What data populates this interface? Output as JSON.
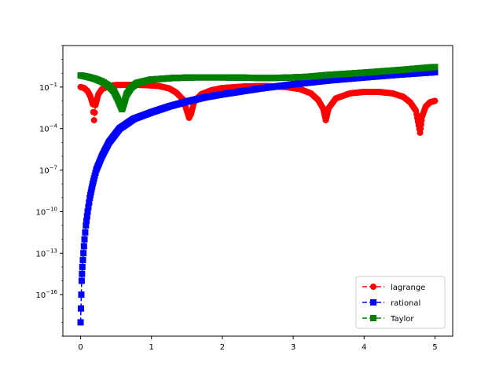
{
  "chart_data": {
    "type": "line",
    "title": "",
    "xlabel": "",
    "ylabel": "",
    "x_scale": "linear",
    "y_scale": "log",
    "xlim": [
      -0.25,
      5.25
    ],
    "ylim": [
      1e-19,
      100.0
    ],
    "x_ticks": [
      {
        "value": 0,
        "label": "0"
      },
      {
        "value": 1,
        "label": "1"
      },
      {
        "value": 2,
        "label": "2"
      },
      {
        "value": 3,
        "label": "3"
      },
      {
        "value": 4,
        "label": "4"
      },
      {
        "value": 5,
        "label": "5"
      }
    ],
    "y_ticks": [
      {
        "value": 1e-16,
        "base": "10",
        "exp": "−16"
      },
      {
        "value": 1e-13,
        "base": "10",
        "exp": "−13"
      },
      {
        "value": 1e-10,
        "base": "10",
        "exp": "−10"
      },
      {
        "value": 1e-07,
        "base": "10",
        "exp": "−7"
      },
      {
        "value": 0.0001,
        "base": "10",
        "exp": "−4"
      },
      {
        "value": 0.1,
        "base": "10",
        "exp": "−1"
      }
    ],
    "grid": false,
    "legend_position": "lower-right",
    "series": [
      {
        "name": "lagrange",
        "color": "#ff0000",
        "marker": "circle",
        "line_style": "dashed",
        "points": [
          [
            0.0,
            0.1
          ],
          [
            0.05,
            0.085
          ],
          [
            0.1,
            0.05
          ],
          [
            0.14,
            0.02
          ],
          [
            0.17,
            0.006
          ],
          [
            0.19,
            0.0004
          ],
          [
            0.21,
            0.005
          ],
          [
            0.25,
            0.03
          ],
          [
            0.3,
            0.07
          ],
          [
            0.4,
            0.12
          ],
          [
            0.5,
            0.14
          ],
          [
            0.7,
            0.145
          ],
          [
            0.9,
            0.14
          ],
          [
            1.1,
            0.12
          ],
          [
            1.25,
            0.08
          ],
          [
            1.35,
            0.04
          ],
          [
            1.45,
            0.012
          ],
          [
            1.53,
            0.0006
          ],
          [
            1.56,
            0.0012
          ],
          [
            1.6,
            0.008
          ],
          [
            1.7,
            0.03
          ],
          [
            1.85,
            0.06
          ],
          [
            2.0,
            0.085
          ],
          [
            2.3,
            0.11
          ],
          [
            2.6,
            0.12
          ],
          [
            2.9,
            0.1
          ],
          [
            3.1,
            0.07
          ],
          [
            3.25,
            0.035
          ],
          [
            3.35,
            0.012
          ],
          [
            3.42,
            0.003
          ],
          [
            3.46,
            0.0004
          ],
          [
            3.5,
            0.003
          ],
          [
            3.6,
            0.015
          ],
          [
            3.8,
            0.035
          ],
          [
            4.0,
            0.045
          ],
          [
            4.2,
            0.045
          ],
          [
            4.4,
            0.035
          ],
          [
            4.55,
            0.02
          ],
          [
            4.65,
            0.008
          ],
          [
            4.73,
            0.002
          ],
          [
            4.79,
            5e-05
          ],
          [
            4.82,
            0.0008
          ],
          [
            4.87,
            0.004
          ],
          [
            4.93,
            0.008
          ],
          [
            5.0,
            0.01
          ]
        ]
      },
      {
        "name": "rational",
        "color": "#0000ff",
        "marker": "square",
        "line_style": "dashed",
        "points": [
          [
            0.0,
            1e-18
          ],
          [
            0.005,
            1e-17
          ],
          [
            0.01,
            1e-16
          ],
          [
            0.015,
            1e-15
          ],
          [
            0.025,
            1e-14
          ],
          [
            0.04,
            1e-13
          ],
          [
            0.055,
            1e-12
          ],
          [
            0.075,
            1e-11
          ],
          [
            0.1,
            1e-10
          ],
          [
            0.13,
            1e-09
          ],
          [
            0.17,
            1e-08
          ],
          [
            0.22,
            1e-07
          ],
          [
            0.3,
            1e-06
          ],
          [
            0.4,
            1e-05
          ],
          [
            0.55,
            0.0001
          ],
          [
            0.75,
            0.0005
          ],
          [
            1.0,
            0.0015
          ],
          [
            1.25,
            0.004
          ],
          [
            1.5,
            0.009
          ],
          [
            1.75,
            0.018
          ],
          [
            2.0,
            0.03
          ],
          [
            2.5,
            0.075
          ],
          [
            3.0,
            0.16
          ],
          [
            3.5,
            0.3
          ],
          [
            4.0,
            0.5
          ],
          [
            4.5,
            0.8
          ],
          [
            5.0,
            1.2
          ]
        ]
      },
      {
        "name": "Taylor",
        "color": "#008000",
        "marker": "square",
        "line_style": "dashed",
        "points": [
          [
            0.0,
            0.7
          ],
          [
            0.1,
            0.55
          ],
          [
            0.2,
            0.4
          ],
          [
            0.3,
            0.25
          ],
          [
            0.4,
            0.12
          ],
          [
            0.47,
            0.05
          ],
          [
            0.52,
            0.015
          ],
          [
            0.56,
            0.005
          ],
          [
            0.585,
            0.0025
          ],
          [
            0.61,
            0.006
          ],
          [
            0.65,
            0.03
          ],
          [
            0.72,
            0.1
          ],
          [
            0.8,
            0.2
          ],
          [
            1.0,
            0.35
          ],
          [
            1.3,
            0.45
          ],
          [
            1.6,
            0.5
          ],
          [
            2.0,
            0.5
          ],
          [
            2.3,
            0.48
          ],
          [
            2.6,
            0.45
          ],
          [
            2.9,
            0.48
          ],
          [
            3.2,
            0.55
          ],
          [
            3.5,
            0.75
          ],
          [
            4.0,
            1.1
          ],
          [
            4.5,
            1.7
          ],
          [
            5.0,
            2.8
          ]
        ]
      }
    ]
  }
}
